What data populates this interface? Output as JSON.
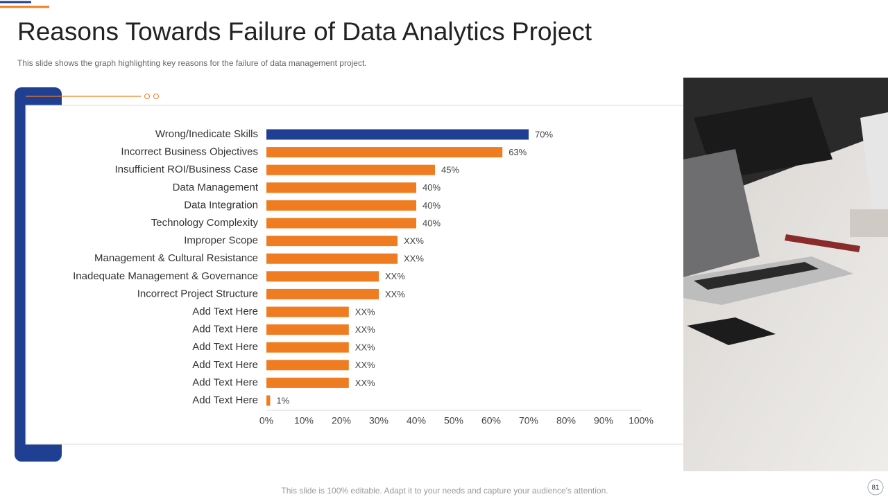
{
  "chart_data": {
    "type": "bar",
    "orientation": "horizontal",
    "title": "Reasons Towards Failure of Data Analytics Project",
    "subtitle": "This slide shows the graph highlighting key reasons for the failure of data management project.",
    "footer": "This slide is 100% editable. Adapt it to your needs and capture your audience's attention.",
    "page_number": "81",
    "categories": [
      "Wrong/Inedicate Skills",
      "Incorrect Business Objectives",
      "Insufficient ROI/Business Case",
      "Data Management",
      "Data Integration",
      "Technology Complexity",
      "Improper Scope",
      "Management & Cultural Resistance",
      "Inadequate Management & Governance",
      "Incorrect Project Structure",
      "Add Text Here",
      "Add Text Here",
      "Add Text Here",
      "Add Text Here",
      "Add Text Here",
      "Add Text Here"
    ],
    "values": [
      70,
      63,
      45,
      40,
      40,
      40,
      35,
      35,
      30,
      30,
      22,
      22,
      22,
      22,
      22,
      1
    ],
    "value_labels": [
      "70%",
      "63%",
      "45%",
      "40%",
      "40%",
      "40%",
      "XX%",
      "XX%",
      "XX%",
      "XX%",
      "XX%",
      "XX%",
      "XX%",
      "XX%",
      "XX%",
      "1%"
    ],
    "colors": [
      "#1f3f93",
      "#f07c22",
      "#f07c22",
      "#f07c22",
      "#f07c22",
      "#f07c22",
      "#f07c22",
      "#f07c22",
      "#f07c22",
      "#f07c22",
      "#f07c22",
      "#f07c22",
      "#f07c22",
      "#f07c22",
      "#f07c22",
      "#f07c22"
    ],
    "xlim": [
      0,
      100
    ],
    "xticks": [
      {
        "value": 0,
        "label": "0%"
      },
      {
        "value": 10,
        "label": "10%"
      },
      {
        "value": 20,
        "label": "20%"
      },
      {
        "value": 30,
        "label": "30%"
      },
      {
        "value": 40,
        "label": "40%"
      },
      {
        "value": 50,
        "label": "50%"
      },
      {
        "value": 60,
        "label": "60%"
      },
      {
        "value": 70,
        "label": "70%"
      },
      {
        "value": 80,
        "label": "80%"
      },
      {
        "value": 90,
        "label": "90%"
      },
      {
        "value": 100,
        "label": "100%"
      }
    ],
    "grid": false
  }
}
